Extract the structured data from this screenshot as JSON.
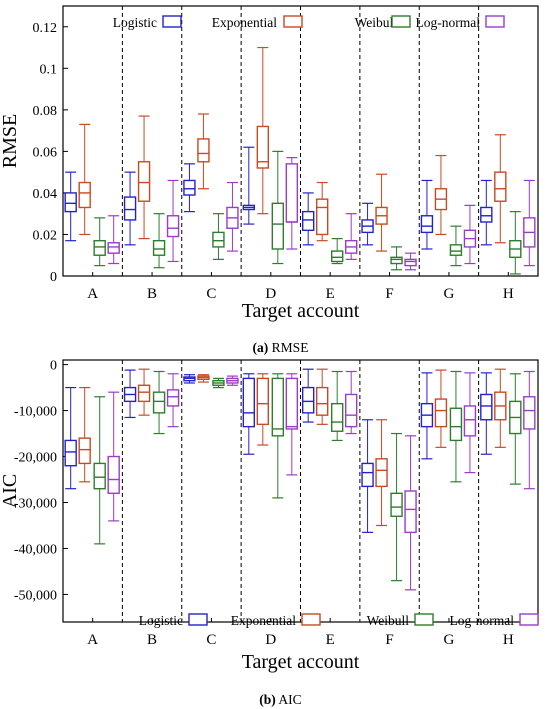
{
  "chart_data": [
    {
      "type": "boxplot",
      "caption_letter": "(a)",
      "caption_text": " RMSE",
      "xlabel": "Target account",
      "ylabel": "RMSE",
      "ylim": [
        0,
        0.13
      ],
      "yticks": [
        0,
        0.02,
        0.04,
        0.06,
        0.08,
        0.1,
        0.12
      ],
      "ytick_labels": [
        "0",
        "0.02",
        "0.04",
        "0.06",
        "0.08",
        "0.1",
        "0.12"
      ],
      "categories": [
        "A",
        "B",
        "C",
        "D",
        "E",
        "F",
        "G",
        "H"
      ],
      "legend_position": "top",
      "series": [
        {
          "name": "Logistic",
          "color": "#2323c8",
          "stats": [
            [
              0.017,
              0.031,
              0.035,
              0.04,
              0.05
            ],
            [
              0.015,
              0.027,
              0.032,
              0.038,
              0.05
            ],
            [
              0.031,
              0.039,
              0.042,
              0.046,
              0.054
            ],
            [
              0.025,
              0.032,
              0.033,
              0.034,
              0.062
            ],
            [
              0.015,
              0.022,
              0.027,
              0.031,
              0.04
            ],
            [
              0.015,
              0.021,
              0.024,
              0.027,
              0.035
            ],
            [
              0.013,
              0.021,
              0.024,
              0.029,
              0.046
            ],
            [
              0.015,
              0.026,
              0.029,
              0.033,
              0.046
            ]
          ]
        },
        {
          "name": "Exponential",
          "color": "#c84a23",
          "stats": [
            [
              0.02,
              0.033,
              0.04,
              0.045,
              0.073
            ],
            [
              0.018,
              0.036,
              0.045,
              0.055,
              0.077
            ],
            [
              0.042,
              0.055,
              0.059,
              0.066,
              0.078
            ],
            [
              0.03,
              0.052,
              0.055,
              0.072,
              0.11
            ],
            [
              0.017,
              0.02,
              0.033,
              0.037,
              0.045
            ],
            [
              0.012,
              0.025,
              0.029,
              0.033,
              0.049
            ],
            [
              0.02,
              0.032,
              0.037,
              0.042,
              0.058
            ],
            [
              0.016,
              0.036,
              0.042,
              0.05,
              0.068
            ]
          ]
        },
        {
          "name": "Weibull",
          "color": "#2e7d2e",
          "stats": [
            [
              0.005,
              0.01,
              0.014,
              0.017,
              0.028
            ],
            [
              0.004,
              0.01,
              0.013,
              0.017,
              0.03
            ],
            [
              0.008,
              0.014,
              0.017,
              0.021,
              0.03
            ],
            [
              0.006,
              0.013,
              0.025,
              0.035,
              0.06
            ],
            [
              0.006,
              0.007,
              0.009,
              0.012,
              0.018
            ],
            [
              0.003,
              0.006,
              0.008,
              0.009,
              0.014
            ],
            [
              0.005,
              0.01,
              0.012,
              0.015,
              0.024
            ],
            [
              0.001,
              0.009,
              0.013,
              0.017,
              0.031
            ]
          ]
        },
        {
          "name": "Log-normal",
          "color": "#9a3cc8",
          "stats": [
            [
              0.006,
              0.011,
              0.014,
              0.016,
              0.029
            ],
            [
              0.007,
              0.019,
              0.023,
              0.029,
              0.046
            ],
            [
              0.012,
              0.023,
              0.028,
              0.033,
              0.045
            ],
            [
              0.013,
              0.026,
              0.026,
              0.054,
              0.057
            ],
            [
              0.008,
              0.011,
              0.014,
              0.017,
              0.03
            ],
            [
              0.003,
              0.005,
              0.007,
              0.008,
              0.011
            ],
            [
              0.006,
              0.014,
              0.018,
              0.022,
              0.034
            ],
            [
              0.005,
              0.014,
              0.021,
              0.028,
              0.046
            ]
          ]
        }
      ]
    },
    {
      "type": "boxplot",
      "caption_letter": "(b)",
      "caption_text": " AIC",
      "xlabel": "Target account",
      "ylabel": "AIC",
      "ylim": [
        -56000,
        1000
      ],
      "yticks": [
        0,
        -10000,
        -20000,
        -30000,
        -40000,
        -50000
      ],
      "ytick_labels": [
        "0",
        "-10,000",
        "-20,000",
        "-30,000",
        "-40,000",
        "-50,000"
      ],
      "categories": [
        "A",
        "B",
        "C",
        "D",
        "E",
        "F",
        "G",
        "H"
      ],
      "legend_position": "bottom",
      "series": [
        {
          "name": "Logistic",
          "color": "#2323c8",
          "stats": [
            [
              -27000,
              -22000,
              -19000,
              -16500,
              -5000
            ],
            [
              -11500,
              -8000,
              -6500,
              -5000,
              -1200
            ],
            [
              -4000,
              -3500,
              -3000,
              -2700,
              -2200
            ],
            [
              -19500,
              -13500,
              -10500,
              -3000,
              -2000
            ],
            [
              -12500,
              -10500,
              -8000,
              -5000,
              -1000
            ],
            [
              -36500,
              -26500,
              -23500,
              -21500,
              -12000
            ],
            [
              -20500,
              -13500,
              -11000,
              -8500,
              -1800
            ],
            [
              -19500,
              -12000,
              -9000,
              -6500,
              -1800
            ]
          ]
        },
        {
          "name": "Exponential",
          "color": "#c84a23",
          "stats": [
            [
              -25500,
              -21500,
              -18500,
              -16000,
              -5000
            ],
            [
              -11000,
              -8000,
              -6000,
              -4500,
              -1000
            ],
            [
              -3800,
              -3200,
              -2800,
              -2500,
              -2200
            ],
            [
              -17500,
              -13000,
              -8500,
              -3000,
              -2000
            ],
            [
              -13000,
              -11000,
              -8500,
              -5000,
              -1000
            ],
            [
              -35000,
              -26500,
              -23000,
              -20500,
              -12000
            ],
            [
              -18000,
              -13500,
              -10000,
              -7500,
              -1200
            ],
            [
              -18000,
              -12000,
              -9000,
              -6000,
              -1000
            ]
          ]
        },
        {
          "name": "Weibull",
          "color": "#2e7d2e",
          "stats": [
            [
              -39000,
              -27000,
              -24500,
              -21500,
              -7000
            ],
            [
              -15000,
              -10500,
              -8000,
              -6000,
              -1500
            ],
            [
              -5000,
              -4500,
              -4000,
              -3500,
              -3000
            ],
            [
              -29000,
              -15500,
              -14000,
              -3000,
              -2000
            ],
            [
              -16500,
              -14500,
              -12500,
              -8500,
              -1500
            ],
            [
              -47000,
              -33000,
              -31000,
              -28000,
              -15000
            ],
            [
              -25500,
              -16500,
              -13500,
              -9500,
              -1500
            ],
            [
              -26000,
              -15000,
              -11500,
              -8000,
              -2000
            ]
          ]
        },
        {
          "name": "Log-normal",
          "color": "#9a3cc8",
          "stats": [
            [
              -34000,
              -28000,
              -25000,
              -20000,
              -6000
            ],
            [
              -13500,
              -9000,
              -7000,
              -5500,
              -2000
            ],
            [
              -4500,
              -4000,
              -3500,
              -3000,
              -2500
            ],
            [
              -24000,
              -14000,
              -13500,
              -3000,
              -2000
            ],
            [
              -15000,
              -13500,
              -11000,
              -6500,
              -1500
            ],
            [
              -49000,
              -36500,
              -31500,
              -27500,
              -15500
            ],
            [
              -23500,
              -15500,
              -12000,
              -9000,
              -1800
            ],
            [
              -27000,
              -14000,
              -10000,
              -7000,
              -1500
            ]
          ]
        }
      ]
    }
  ]
}
